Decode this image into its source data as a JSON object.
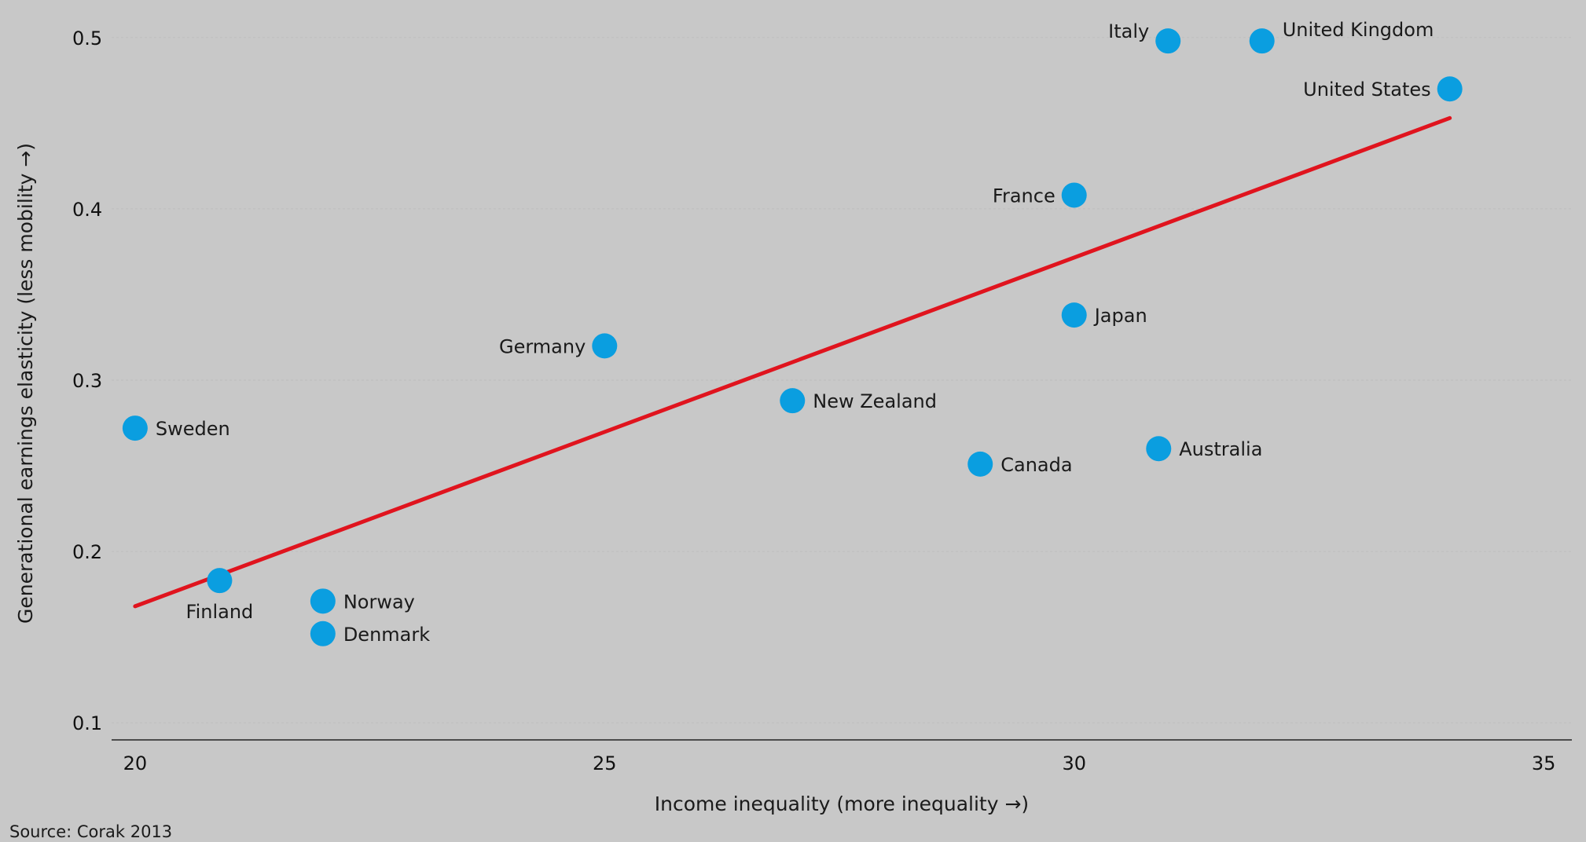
{
  "chart_data": {
    "type": "scatter",
    "xlabel": "Income inequality (more inequality →)",
    "ylabel": "Generational earnings elasticity (less mobility →)",
    "source": "Source: Corak 2013",
    "xlim": [
      19.75,
      35.3
    ],
    "ylim": [
      0.09,
      0.51
    ],
    "x_ticks": [
      20,
      25,
      30,
      35
    ],
    "y_ticks": [
      0.1,
      0.2,
      0.3,
      0.4,
      0.5
    ],
    "grid": "horizontal dotted",
    "colors": {
      "background": "#c8c8c8",
      "point": "#0a9ee0",
      "trend": "#e0141e",
      "axis": "#222222"
    },
    "points": [
      {
        "label": "Sweden",
        "x": 20.0,
        "y": 0.272,
        "label_pos": "right"
      },
      {
        "label": "Finland",
        "x": 20.9,
        "y": 0.183,
        "label_pos": "below"
      },
      {
        "label": "Norway",
        "x": 22.0,
        "y": 0.171,
        "label_pos": "right"
      },
      {
        "label": "Denmark",
        "x": 22.0,
        "y": 0.152,
        "label_pos": "right"
      },
      {
        "label": "Germany",
        "x": 25.0,
        "y": 0.32,
        "label_pos": "left"
      },
      {
        "label": "New Zealand",
        "x": 27.0,
        "y": 0.288,
        "label_pos": "right"
      },
      {
        "label": "Canada",
        "x": 29.0,
        "y": 0.251,
        "label_pos": "right"
      },
      {
        "label": "Japan",
        "x": 30.0,
        "y": 0.338,
        "label_pos": "right"
      },
      {
        "label": "France",
        "x": 30.0,
        "y": 0.408,
        "label_pos": "left"
      },
      {
        "label": "Australia",
        "x": 30.9,
        "y": 0.26,
        "label_pos": "right"
      },
      {
        "label": "Italy",
        "x": 31.0,
        "y": 0.498,
        "label_pos": "left-up"
      },
      {
        "label": "United Kingdom",
        "x": 32.0,
        "y": 0.498,
        "label_pos": "right-up"
      },
      {
        "label": "United States",
        "x": 34.0,
        "y": 0.47,
        "label_pos": "left"
      }
    ],
    "trendline": {
      "x": [
        20.0,
        34.0
      ],
      "y": [
        0.168,
        0.453
      ]
    }
  }
}
